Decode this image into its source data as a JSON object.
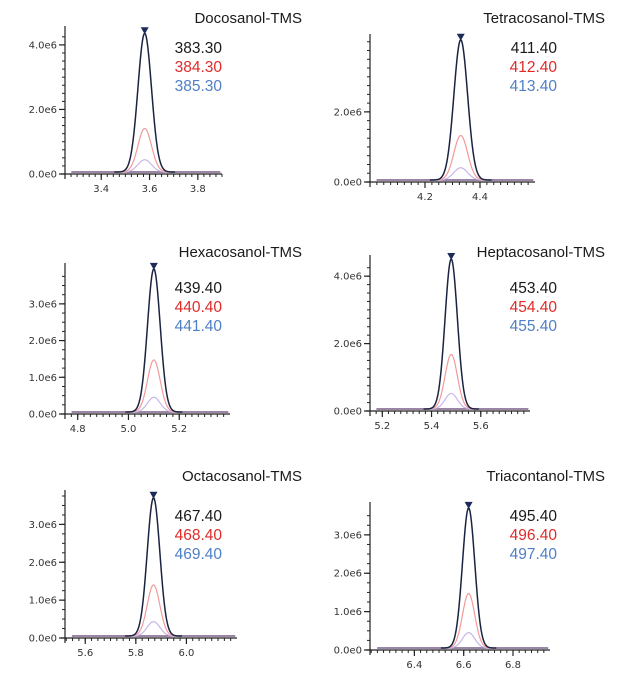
{
  "chart_data": [
    {
      "type": "line",
      "title": "Docosanol-TMS",
      "x_ticks": [
        "3.4",
        "3.6",
        "3.8"
      ],
      "y_ticks": [
        "0.0e0",
        "2.0e6",
        "4.0e6"
      ],
      "xlim": [
        3.25,
        3.9
      ],
      "ylim": [
        0,
        4400000
      ],
      "peak_rt": 3.58,
      "peak_width": 0.028,
      "peak_heights": [
        4300000,
        1350000,
        380000
      ],
      "series": [
        {
          "name": "383.30",
          "color": "#1a1a1a"
        },
        {
          "name": "384.30",
          "color": "#e02a2a"
        },
        {
          "name": "385.30",
          "color": "#4f7fc6"
        }
      ]
    },
    {
      "type": "line",
      "title": "Tetracosanol-TMS",
      "x_ticks": [
        "4.2",
        "4.4"
      ],
      "y_ticks": [
        "0.0e0",
        "2.0e6"
      ],
      "xlim": [
        4.0,
        4.6
      ],
      "ylim": [
        0,
        4050000
      ],
      "peak_rt": 4.33,
      "peak_width": 0.025,
      "peak_heights": [
        4000000,
        1270000,
        350000
      ],
      "series": [
        {
          "name": "411.40",
          "color": "#1a1a1a"
        },
        {
          "name": "412.40",
          "color": "#e02a2a"
        },
        {
          "name": "413.40",
          "color": "#4f7fc6"
        }
      ]
    },
    {
      "type": "line",
      "title": "Hexacosanol-TMS",
      "x_ticks": [
        "4.8",
        "5.0",
        "5.2"
      ],
      "y_ticks": [
        "0.0e0",
        "1.0e6",
        "2.0e6",
        "3.0e6"
      ],
      "xlim": [
        4.75,
        5.4
      ],
      "ylim": [
        0,
        3950000
      ],
      "peak_rt": 5.1,
      "peak_width": 0.025,
      "peak_heights": [
        3900000,
        1420000,
        400000
      ],
      "series": [
        {
          "name": "439.40",
          "color": "#1a1a1a"
        },
        {
          "name": "440.40",
          "color": "#e02a2a"
        },
        {
          "name": "441.40",
          "color": "#4f7fc6"
        }
      ]
    },
    {
      "type": "line",
      "title": "Heptacosanol-TMS",
      "x_ticks": [
        "5.2",
        "5.4",
        "5.6"
      ],
      "y_ticks": [
        "0.0e0",
        "2.0e6",
        "4.0e6"
      ],
      "xlim": [
        5.15,
        5.8
      ],
      "ylim": [
        0,
        4450000
      ],
      "peak_rt": 5.48,
      "peak_width": 0.025,
      "peak_heights": [
        4450000,
        1620000,
        460000
      ],
      "series": [
        {
          "name": "453.40",
          "color": "#1a1a1a"
        },
        {
          "name": "454.40",
          "color": "#e02a2a"
        },
        {
          "name": "455.40",
          "color": "#4f7fc6"
        }
      ]
    },
    {
      "type": "line",
      "title": "Octacosanol-TMS",
      "x_ticks": [
        "5.6",
        "5.8",
        "6.0"
      ],
      "y_ticks": [
        "0.0e0",
        "1.0e6",
        "2.0e6",
        "3.0e6"
      ],
      "xlim": [
        5.52,
        6.2
      ],
      "ylim": [
        0,
        3750000
      ],
      "peak_rt": 5.87,
      "peak_width": 0.025,
      "peak_heights": [
        3650000,
        1350000,
        380000
      ],
      "series": [
        {
          "name": "467.40",
          "color": "#1a1a1a"
        },
        {
          "name": "468.40",
          "color": "#e02a2a"
        },
        {
          "name": "469.40",
          "color": "#4f7fc6"
        }
      ]
    },
    {
      "type": "line",
      "title": "Triacontanol-TMS",
      "x_ticks": [
        "6.4",
        "6.6",
        "6.8"
      ],
      "y_ticks": [
        "0.0e0",
        "1.0e6",
        "2.0e6",
        "3.0e6"
      ],
      "xlim": [
        6.22,
        6.95
      ],
      "ylim": [
        0,
        3700000
      ],
      "peak_rt": 6.62,
      "peak_width": 0.025,
      "peak_heights": [
        3650000,
        1420000,
        400000
      ],
      "series": [
        {
          "name": "495.40",
          "color": "#1a1a1a"
        },
        {
          "name": "496.40",
          "color": "#e02a2a"
        },
        {
          "name": "497.40",
          "color": "#4f7fc6"
        }
      ]
    }
  ]
}
